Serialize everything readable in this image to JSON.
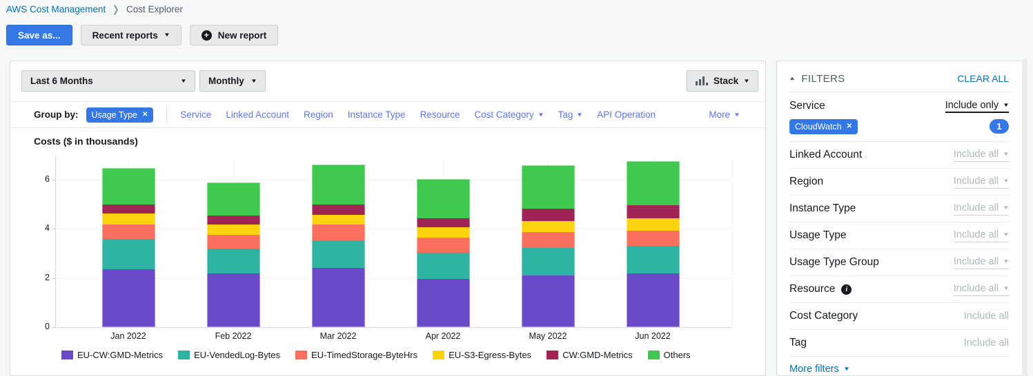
{
  "icons": {
    "caret_down": "▼",
    "caret_up": "▲",
    "close": "✕",
    "plus": "+",
    "info": "i",
    "breadcrumb_chevron": "❯"
  },
  "breadcrumb": {
    "root": "AWS Cost Management",
    "current": "Cost Explorer"
  },
  "toolbar": {
    "save_as": "Save as...",
    "recent_reports": "Recent reports",
    "new_report": "New report"
  },
  "controls": {
    "date_range": "Last 6 Months",
    "granularity": "Monthly",
    "chart_style": "Stack"
  },
  "group_by": {
    "label": "Group by:",
    "chip": "Usage Type",
    "links": [
      {
        "label": "Service",
        "caret": false
      },
      {
        "label": "Linked Account",
        "caret": false
      },
      {
        "label": "Region",
        "caret": false
      },
      {
        "label": "Instance Type",
        "caret": false
      },
      {
        "label": "Resource",
        "caret": false
      },
      {
        "label": "Cost Category",
        "caret": true
      },
      {
        "label": "Tag",
        "caret": true
      },
      {
        "label": "API Operation",
        "caret": false
      }
    ],
    "more": {
      "label": "More"
    }
  },
  "chart_data": {
    "type": "bar",
    "stacked": true,
    "title": "Costs ($ in thousands)",
    "categories": [
      "Jan 2022",
      "Feb 2022",
      "Mar 2022",
      "Apr 2022",
      "May 2022",
      "Jun 2022"
    ],
    "series": [
      {
        "name": "EU-CW:GMD-Metrics",
        "color": "#6b4ac9",
        "values": [
          2.36,
          2.18,
          2.42,
          1.96,
          2.09,
          2.18
        ]
      },
      {
        "name": "EU-VendedLog-Bytes",
        "color": "#2eb2a2",
        "values": [
          1.24,
          1.03,
          1.11,
          1.07,
          1.14,
          1.14
        ]
      },
      {
        "name": "EU-TimedStorage-ByteHrs",
        "color": "#fb6f5f",
        "values": [
          0.59,
          0.56,
          0.64,
          0.62,
          0.63,
          0.62
        ]
      },
      {
        "name": "EU-S3-Egress-Bytes",
        "color": "#fdd30f",
        "values": [
          0.44,
          0.42,
          0.41,
          0.42,
          0.45,
          0.5
        ]
      },
      {
        "name": "CW:GMD-Metrics",
        "color": "#a02456",
        "values": [
          0.37,
          0.35,
          0.42,
          0.36,
          0.51,
          0.53
        ]
      },
      {
        "name": "Others",
        "color": "#3fc94f",
        "values": [
          1.48,
          1.35,
          1.63,
          1.6,
          1.76,
          1.79
        ]
      }
    ],
    "xlabel": "",
    "ylabel": "Costs ($ in thousands)",
    "ylim": [
      0,
      6.9
    ],
    "yticks": [
      0,
      2,
      4,
      6
    ],
    "grid": true,
    "legend_position": "bottom"
  },
  "filters": {
    "title": "FILTERS",
    "clear_all": "CLEAR ALL",
    "rows": [
      {
        "label": "Service",
        "action": "Include only",
        "caret": true,
        "state": "active",
        "chip": "CloudWatch",
        "badge": "1"
      },
      {
        "label": "Linked Account",
        "action": "Include all",
        "caret": true,
        "state": "muted"
      },
      {
        "label": "Region",
        "action": "Include all",
        "caret": true,
        "state": "muted"
      },
      {
        "label": "Instance Type",
        "action": "Include all",
        "caret": true,
        "state": "muted"
      },
      {
        "label": "Usage Type",
        "action": "Include all",
        "caret": true,
        "state": "muted"
      },
      {
        "label": "Usage Type Group",
        "action": "Include all",
        "caret": true,
        "state": "muted"
      },
      {
        "label": "Resource",
        "info": true,
        "action": "Include all",
        "caret": true,
        "state": "muted"
      },
      {
        "label": "Cost Category",
        "action": "Include all",
        "caret": false,
        "state": "plain"
      },
      {
        "label": "Tag",
        "action": "Include all",
        "caret": false,
        "state": "plain"
      }
    ],
    "more_filters": "More filters"
  },
  "colors": {
    "link_blue": "#0073bb",
    "accent_blue": "#3478e5",
    "groupby_link": "#5f76e8"
  }
}
